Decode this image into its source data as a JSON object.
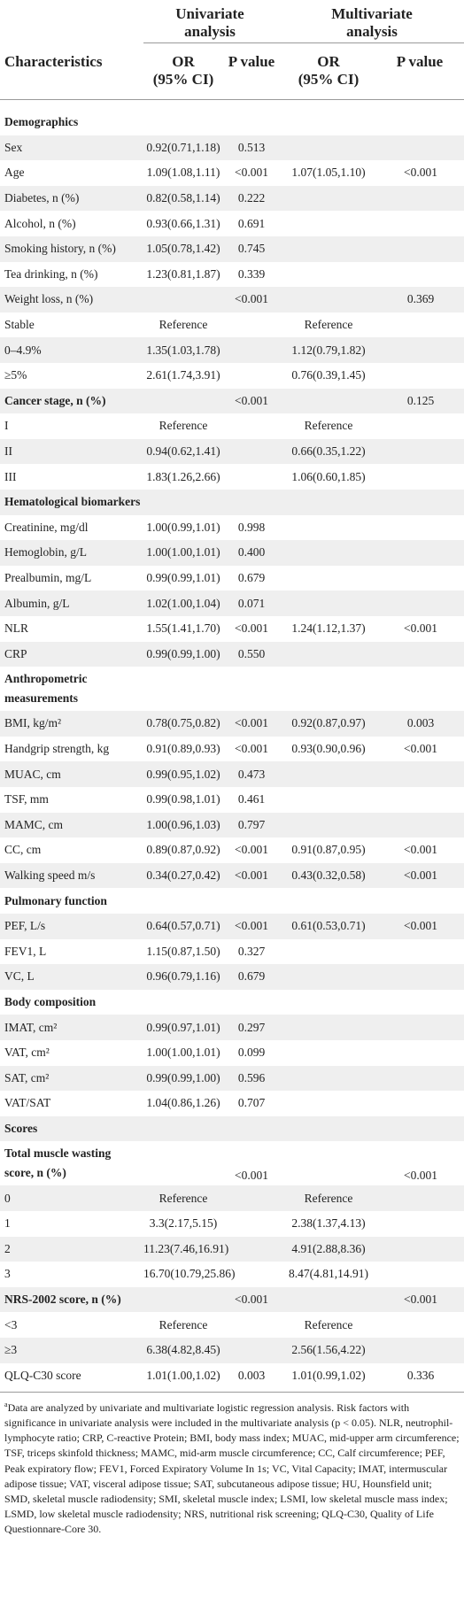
{
  "header": {
    "group1": "Univariate analysis",
    "group1_l1": "Univariate",
    "group1_l2": "analysis",
    "group2_l1": "Multivariate",
    "group2_l2": "analysis",
    "col_char": "Characteristics",
    "or1_l1": "OR",
    "or1_l2": "(95% CI)",
    "p1": "P value",
    "or2_l1": "OR",
    "or2_l2": "(95% CI)",
    "p2": "P value"
  },
  "rows": [
    {
      "label": "Demographics",
      "section": true
    },
    {
      "label": "Sex",
      "uor": "0.92(0.71,1.18)",
      "up": "0.513",
      "mor": "",
      "mp": ""
    },
    {
      "label": "Age",
      "uor": "1.09(1.08,1.11)",
      "up": "<0.001",
      "mor": "1.07(1.05,1.10)",
      "mp": "<0.001"
    },
    {
      "label": "Diabetes, n (%)",
      "uor": "0.82(0.58,1.14)",
      "up": "0.222",
      "mor": "",
      "mp": ""
    },
    {
      "label": "Alcohol, n (%)",
      "uor": "0.93(0.66,1.31)",
      "up": "0.691",
      "mor": "",
      "mp": ""
    },
    {
      "label": "Smoking history, n (%)",
      "uor": "1.05(0.78,1.42)",
      "up": "0.745",
      "mor": "",
      "mp": ""
    },
    {
      "label": "Tea drinking, n (%)",
      "uor": "1.23(0.81,1.87)",
      "up": "0.339",
      "mor": "",
      "mp": ""
    },
    {
      "label": "Weight loss, n (%)",
      "uor": "",
      "up": "<0.001",
      "mor": "",
      "mp": "0.369"
    },
    {
      "label": "Stable",
      "uor": "Reference",
      "up": "",
      "mor": "Reference",
      "mp": ""
    },
    {
      "label": "0–4.9%",
      "uor": "1.35(1.03,1.78)",
      "up": "",
      "mor": "1.12(0.79,1.82)",
      "mp": ""
    },
    {
      "label": "≥5%",
      "uor": "2.61(1.74,3.91)",
      "up": "",
      "mor": "0.76(0.39,1.45)",
      "mp": ""
    },
    {
      "label": "Cancer stage, n (%)",
      "section": true,
      "uor": "",
      "up": "<0.001",
      "mor": "",
      "mp": "0.125"
    },
    {
      "label": "I",
      "uor": "Reference",
      "up": "",
      "mor": "Reference",
      "mp": ""
    },
    {
      "label": "II",
      "uor": "0.94(0.62,1.41)",
      "up": "",
      "mor": "0.66(0.35,1.22)",
      "mp": ""
    },
    {
      "label": "III",
      "uor": "1.83(1.26,2.66)",
      "up": "",
      "mor": "1.06(0.60,1.85)",
      "mp": ""
    },
    {
      "label": "Hematological biomarkers",
      "section": true
    },
    {
      "label": "Creatinine, mg/dl",
      "uor": "1.00(0.99,1.01)",
      "up": "0.998",
      "mor": "",
      "mp": ""
    },
    {
      "label": "Hemoglobin, g/L",
      "uor": "1.00(1.00,1.01)",
      "up": "0.400",
      "mor": "",
      "mp": ""
    },
    {
      "label": "Prealbumin, mg/L",
      "uor": "0.99(0.99,1.01)",
      "up": "0.679",
      "mor": "",
      "mp": ""
    },
    {
      "label": "Albumin, g/L",
      "uor": "1.02(1.00,1.04)",
      "up": "0.071",
      "mor": "",
      "mp": ""
    },
    {
      "label": "NLR",
      "uor": "1.55(1.41,1.70)",
      "up": "<0.001",
      "mor": "1.24(1.12,1.37)",
      "mp": "<0.001"
    },
    {
      "label": "CRP",
      "uor": "0.99(0.99,1.00)",
      "up": "0.550",
      "mor": "",
      "mp": ""
    },
    {
      "label": "Anthropometric",
      "label2": "measurements",
      "section": true
    },
    {
      "label": "BMI, kg/m²",
      "uor": "0.78(0.75,0.82)",
      "up": "<0.001",
      "mor": "0.92(0.87,0.97)",
      "mp": "0.003"
    },
    {
      "label": "Handgrip strength, kg",
      "uor": "0.91(0.89,0.93)",
      "up": "<0.001",
      "mor": "0.93(0.90,0.96)",
      "mp": "<0.001"
    },
    {
      "label": "MUAC, cm",
      "uor": "0.99(0.95,1.02)",
      "up": "0.473",
      "mor": "",
      "mp": ""
    },
    {
      "label": "TSF, mm",
      "uor": "0.99(0.98,1.01)",
      "up": "0.461",
      "mor": "",
      "mp": ""
    },
    {
      "label": "MAMC, cm",
      "uor": "1.00(0.96,1.03)",
      "up": "0.797",
      "mor": "",
      "mp": ""
    },
    {
      "label": "CC, cm",
      "uor": "0.89(0.87,0.92)",
      "up": "<0.001",
      "mor": "0.91(0.87,0.95)",
      "mp": "<0.001"
    },
    {
      "label": "Walking speed m/s",
      "uor": "0.34(0.27,0.42)",
      "up": "<0.001",
      "mor": "0.43(0.32,0.58)",
      "mp": "<0.001"
    },
    {
      "label": "Pulmonary function",
      "section": true
    },
    {
      "label": "PEF, L/s",
      "uor": "0.64(0.57,0.71)",
      "up": "<0.001",
      "mor": "0.61(0.53,0.71)",
      "mp": "<0.001"
    },
    {
      "label": "FEV1, L",
      "uor": "1.15(0.87,1.50)",
      "up": "0.327",
      "mor": "",
      "mp": ""
    },
    {
      "label": "VC, L",
      "uor": "0.96(0.79,1.16)",
      "up": "0.679",
      "mor": "",
      "mp": ""
    },
    {
      "label": "Body composition",
      "section": true
    },
    {
      "label": "IMAT, cm²",
      "uor": "0.99(0.97,1.01)",
      "up": "0.297",
      "mor": "",
      "mp": ""
    },
    {
      "label": "VAT, cm²",
      "uor": "1.00(1.00,1.01)",
      "up": "0.099",
      "mor": "",
      "mp": ""
    },
    {
      "label": "SAT, cm²",
      "uor": "0.99(0.99,1.00)",
      "up": "0.596",
      "mor": "",
      "mp": ""
    },
    {
      "label": "VAT/SAT",
      "uor": "1.04(0.86,1.26)",
      "up": "0.707",
      "mor": "",
      "mp": ""
    },
    {
      "label": "Scores",
      "section": true
    },
    {
      "label": "Total muscle wasting",
      "label2": "score, n (%)",
      "section": true,
      "uor": "",
      "up": "<0.001",
      "mor": "",
      "mp": "<0.001"
    },
    {
      "label": "0",
      "uor": "Reference",
      "up": "",
      "mor": "Reference",
      "mp": ""
    },
    {
      "label": "1",
      "uor": "3.3(2.17,5.15)",
      "up": "",
      "mor": "2.38(1.37,4.13)",
      "mp": ""
    },
    {
      "label": "2",
      "uor": "11.23(7.46,16.91)",
      "up": "",
      "mor": "4.91(2.88,8.36)",
      "mp": ""
    },
    {
      "label": "3",
      "uor": "16.70(10.79,25.86)",
      "up": "",
      "mor": "8.47(4.81,14.91)",
      "mp": ""
    },
    {
      "label": "NRS-2002 score, n (%)",
      "section": true,
      "uor": "",
      "up": "<0.001",
      "mor": "",
      "mp": "<0.001"
    },
    {
      "label": "<3",
      "uor": "Reference",
      "up": "",
      "mor": "Reference",
      "mp": ""
    },
    {
      "label": "≥3",
      "uor": "6.38(4.82,8.45)",
      "up": "",
      "mor": "2.56(1.56,4.22)",
      "mp": ""
    },
    {
      "label": "QLQ-C30 score",
      "uor": "1.01(1.00,1.02)",
      "up": "0.003",
      "mor": "1.01(0.99,1.02)",
      "mp": "0.336"
    }
  ],
  "footnote": {
    "mark": "a",
    "text": "Data are analyzed by univariate and multivariate logistic regression analysis. Risk factors with significance in univariate analysis were included in the multivariate analysis (p < 0.05). NLR, neutrophil-lymphocyte ratio; CRP, C-reactive Protein; BMI, body mass index; MUAC, mid-upper arm circumference; TSF, triceps skinfold thickness; MAMC, mid-arm muscle circumference; CC, Calf circumference; PEF, Peak expiratory flow; FEV1, Forced Expiratory Volume In 1s; VC, Vital Capacity; IMAT, intermuscular adipose tissue; VAT, visceral adipose tissue; SAT, subcutaneous adipose tissue; HU, Hounsfield unit; SMD, skeletal muscle radiodensity; SMI, skeletal muscle index; LSMI, low skeletal muscle mass index; LSMD, low skeletal muscle radiodensity; NRS, nutritional risk screening; QLQ-C30, Quality of Life Questionnare-Core 30."
  }
}
